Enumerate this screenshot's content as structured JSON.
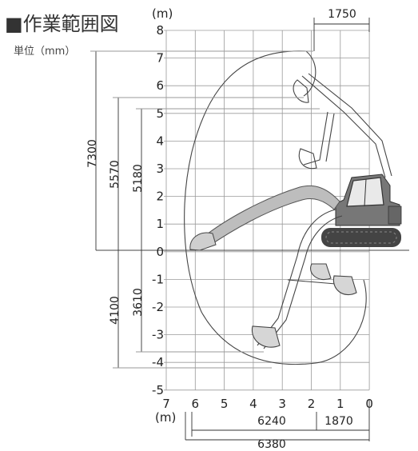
{
  "title": "■作業範囲図",
  "unit_label": "単位（mm）",
  "axes": {
    "y_unit": "(m)",
    "x_unit": "(m)",
    "y_ticks": [
      "8",
      "7",
      "6",
      "5",
      "4",
      "3",
      "2",
      "1",
      "0",
      "-1",
      "-2",
      "-3",
      "-4",
      "-5"
    ],
    "x_ticks": [
      "7",
      "6",
      "5",
      "4",
      "3",
      "2",
      "1",
      "0"
    ]
  },
  "dimensions": {
    "max_reach_height": "7300",
    "max_dump_height": "5570",
    "height_5180": "5180",
    "max_dig_depth": "4100",
    "depth_3610": "3610",
    "top_offset": "1750",
    "reach_6240": "6240",
    "offset_1870": "1870",
    "max_reach_ground": "6380"
  },
  "colors": {
    "line": "#333333",
    "grid": "#9a9a9a",
    "machine": "#555555"
  }
}
